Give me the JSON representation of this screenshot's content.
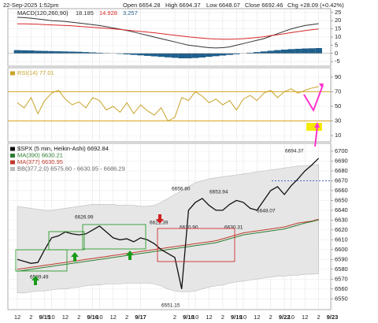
{
  "header": {
    "timestamp": "22-Sep-2025 1:52pm",
    "open": "Open 6654.28",
    "high": "High 6694.37",
    "low": "Low 6648.07",
    "close": "Close 6692.46",
    "change": "Chg +28.09 (+0.42%)"
  },
  "chart_data": [
    {
      "type": "line",
      "label": "MACD(120,260,90)",
      "ylim": [
        -7.8,
        27.3
      ],
      "yticks": [
        -5,
        0,
        5,
        10,
        15,
        20,
        25
      ],
      "series": [
        {
          "name": "18.185",
          "type": "line",
          "color": "#333333",
          "values": [
            22,
            21.8,
            21.5,
            21,
            20.5,
            20,
            19.8,
            19.5,
            19,
            18.5,
            18,
            17.5,
            17,
            16.3,
            15.5,
            14.8,
            14,
            13,
            12,
            11,
            10,
            9,
            8,
            7,
            6,
            5,
            4.5,
            4,
            3.5,
            3.3,
            3.5,
            4,
            5,
            6,
            7,
            8,
            9,
            10.5,
            12,
            13.5,
            15,
            16,
            17,
            17.6,
            18.185,
            null,
            null
          ]
        },
        {
          "name": "14.928",
          "type": "line",
          "color": "#d62728",
          "values": [
            18,
            18,
            17.9,
            17.8,
            17.6,
            17.4,
            17.2,
            17,
            16.8,
            16.5,
            16.2,
            15.9,
            15.6,
            15.3,
            15,
            14.6,
            14.2,
            13.8,
            13.4,
            13,
            12.6,
            12.1,
            11.6,
            11.1,
            10.6,
            10.1,
            9.7,
            9.3,
            9,
            8.8,
            8.7,
            8.7,
            8.8,
            9,
            9.3,
            9.7,
            10.2,
            10.8,
            11.4,
            12,
            12.7,
            13.3,
            13.9,
            14.4,
            14.928,
            null,
            null
          ]
        },
        {
          "name": "3.257",
          "type": "bar",
          "color": "#1f5f8b",
          "values": [
            2,
            1.9,
            1.8,
            1.6,
            1.5,
            1.4,
            1.3,
            1.2,
            1.1,
            1,
            0.8,
            0.6,
            0.4,
            0.2,
            0,
            -0.3,
            -0.6,
            -0.9,
            -1.2,
            -1.5,
            -1.8,
            -2.1,
            -2.4,
            -2.7,
            -3,
            -3,
            -2.8,
            -2.5,
            -2.1,
            -1.7,
            -1.3,
            -0.9,
            -0.5,
            0,
            0.4,
            0.8,
            1.2,
            1.6,
            2,
            2.3,
            2.6,
            2.8,
            3,
            3.1,
            3.257,
            null,
            null
          ]
        }
      ]
    },
    {
      "type": "line",
      "ylim": [
        1.5,
        102.8
      ],
      "yticks": [
        10,
        30,
        50,
        70,
        90
      ],
      "hlines": [
        70,
        30
      ],
      "series": [
        {
          "name": "RSI(14) 77.01",
          "type": "line",
          "color": "#c9a227",
          "values": [
            55,
            48,
            62,
            40,
            58,
            68,
            72,
            60,
            52,
            56,
            48,
            62,
            58,
            45,
            50,
            42,
            55,
            40,
            52,
            44,
            38,
            48,
            30,
            35,
            62,
            58,
            70,
            64,
            55,
            60,
            52,
            58,
            45,
            60,
            65,
            58,
            68,
            72,
            62,
            70,
            74,
            68,
            72,
            75,
            77.01,
            null,
            null
          ]
        }
      ]
    },
    {
      "type": "line",
      "ylim": [
        6539,
        6708
      ],
      "yticks": [
        6550,
        6560,
        6570,
        6580,
        6590,
        6600,
        6610,
        6620,
        6630,
        6640,
        6650,
        6660,
        6670,
        6680,
        6690,
        6700
      ],
      "hline": 6670,
      "categories": [
        "12",
        null,
        "2",
        null,
        "9/15",
        "10",
        null,
        "12",
        null,
        "2",
        null,
        "9/16",
        "10",
        null,
        "12",
        null,
        "2",
        null,
        "9/17",
        null,
        null,
        null,
        null,
        "2",
        null,
        "9/18",
        "10",
        null,
        "12",
        null,
        "2",
        null,
        "9/19",
        "10",
        null,
        "12",
        null,
        "2",
        null,
        "9/22",
        "10",
        null,
        "12",
        null,
        "2",
        null,
        "9/23"
      ],
      "annotations": [
        "6694.37",
        "6656.80",
        "6653.94",
        "6648.07",
        "6626.99",
        "6630.90",
        "6630.31",
        "6621.39",
        "6589.49",
        "6551.15"
      ],
      "series": [
        {
          "name": "BB(377,2.0) 6575.60 - 6630.95 - 6686.29",
          "type": "band",
          "color": "#e6e6e6",
          "upper": [
            6644,
            6643,
            6642,
            6641,
            6640,
            6640,
            6641,
            6642,
            6643,
            6644,
            6645,
            6646,
            6646,
            6646,
            6646,
            6645,
            6645,
            6645,
            6644,
            6644,
            6645,
            6648,
            6652,
            6656,
            6660,
            6664,
            6668,
            6670,
            6672,
            6673,
            6674,
            6675,
            6676,
            6677,
            6678,
            6679,
            6680,
            6681,
            6682,
            6683,
            6684,
            6685,
            6685,
            6686,
            6686.29,
            null,
            null
          ],
          "lower": [
            6556,
            6556,
            6557,
            6558,
            6558,
            6559,
            6560,
            6560,
            6561,
            6562,
            6563,
            6564,
            6564,
            6565,
            6565,
            6565,
            6566,
            6566,
            6566,
            6566,
            6565,
            6563,
            6560,
            6558,
            6557,
            6557,
            6558,
            6560,
            6562,
            6563,
            6564,
            6566,
            6567,
            6568,
            6569,
            6570,
            6571,
            6572,
            6573,
            6573,
            6574,
            6574,
            6575,
            6575,
            6575.6,
            null,
            null
          ]
        },
        {
          "name": "MA(377) 6630.95",
          "type": "line",
          "color": "#c0392b",
          "values": [
            6580,
            6581,
            6582,
            6583,
            6584,
            6585,
            6586,
            6587,
            6588,
            6589,
            6590,
            6591,
            6592,
            6593,
            6594,
            6595,
            6596,
            6597,
            6598,
            6599,
            6600,
            6601,
            6602,
            6603,
            6604,
            6605,
            6606,
            6607,
            6608,
            6609,
            6611,
            6613,
            6615,
            6617,
            6618,
            6619,
            6620,
            6621,
            6622,
            6623,
            6625,
            6627,
            6628,
            6629,
            6630.95,
            null,
            null
          ]
        },
        {
          "name": "MA(390) 6630.21",
          "type": "line",
          "color": "#2e7d32",
          "values": [
            6578,
            6579,
            6580,
            6581,
            6582,
            6583,
            6584,
            6585,
            6586,
            6587,
            6588,
            6589,
            6590,
            6591,
            6592,
            6593,
            6594,
            6595,
            6596,
            6597,
            6598,
            6599,
            6600,
            6601,
            6602,
            6603,
            6604,
            6605,
            6606,
            6607,
            6609,
            6611,
            6613,
            6615,
            6616,
            6617,
            6618,
            6619,
            6620,
            6621,
            6623,
            6625,
            6627,
            6628.5,
            6630.21,
            null,
            null
          ]
        },
        {
          "name": "$SPX (5 min, Heikin-Ashi) 6692.84",
          "type": "line",
          "color": "#111111",
          "values": [
            6590,
            6588,
            6586,
            6587,
            6600,
            6612,
            6614,
            6618,
            6616,
            6615,
            6616,
            6620,
            6624,
            6618,
            6612,
            6610,
            6611,
            6608,
            6612,
            6610,
            6606,
            6600,
            6596,
            6592,
            6560,
            6640,
            6648,
            6652,
            6645,
            6640,
            6640,
            6646,
            6650,
            6648,
            6642,
            6640,
            6650,
            6660,
            6664,
            6656,
            6665,
            6672,
            6680,
            6686,
            6692.84,
            null,
            null
          ]
        }
      ]
    }
  ]
}
